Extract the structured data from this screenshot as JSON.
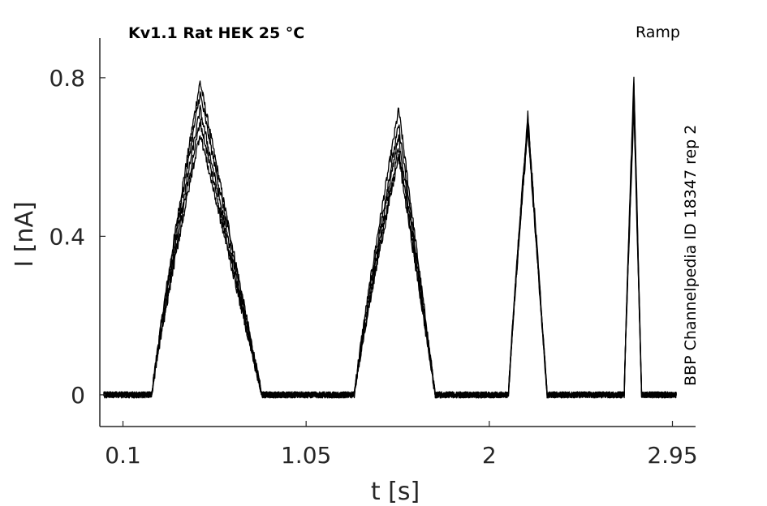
{
  "chart_data": {
    "type": "line",
    "title": "Kv1.1  Rat  HEK  25 °C",
    "protocol": "Ramp",
    "source": "BBP Channelpedia ID 18347 rep 2",
    "xlabel": "t [s]",
    "ylabel": "I [nA]",
    "xlim": [
      -0.02,
      3.07
    ],
    "ylim": [
      -0.08,
      0.9
    ],
    "x_ticks": [
      0.1,
      1.05,
      2,
      2.95
    ],
    "x_tick_labels": [
      "0.1",
      "1.05",
      "2",
      "2.95"
    ],
    "y_ticks": [
      0,
      0.4,
      0.8
    ],
    "y_tick_labels": [
      "0",
      "0.4",
      "0.8"
    ],
    "grid": false,
    "line_color": "#000000",
    "series_count": 5,
    "peaks": [
      {
        "start": 0.25,
        "rise_to": 0.39,
        "peak_t": 0.5,
        "peak_values": [
          0.79,
          0.76,
          0.72,
          0.69,
          0.66
        ],
        "end": 0.82
      },
      {
        "start": 1.3,
        "rise_to": 1.43,
        "peak_t": 1.53,
        "peak_values": [
          0.72,
          0.68,
          0.65,
          0.62,
          0.6
        ],
        "end": 1.72
      },
      {
        "start": 2.1,
        "rise_to": 2.17,
        "peak_t": 2.2,
        "peak_values": [
          0.71,
          0.7,
          0.69,
          0.68,
          0.67
        ],
        "end": 2.3
      },
      {
        "start": 2.7,
        "rise_to": 2.72,
        "peak_t": 2.75,
        "peak_values": [
          0.8,
          0.78,
          0.76,
          0.74,
          0.72
        ],
        "end": 2.79
      }
    ],
    "baseline": 0,
    "x_start": 0.0,
    "x_end": 2.97
  }
}
